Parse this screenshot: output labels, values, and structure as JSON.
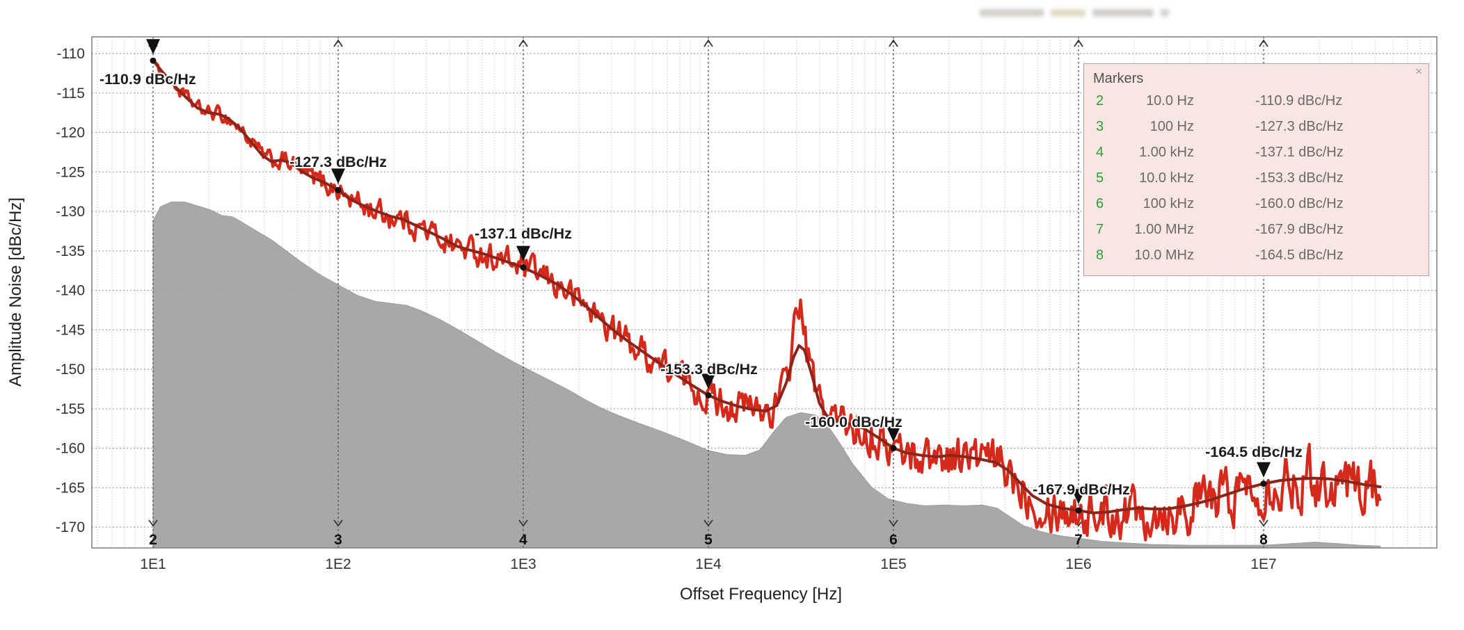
{
  "chart_data": {
    "type": "line",
    "title": "",
    "xlabel": "Offset Frequency [Hz]",
    "ylabel": "Amplitude Noise [dBc/Hz]",
    "x_scale": "log",
    "xlim_log10": [
      0.669,
      7.93
    ],
    "ylim": [
      -172.6,
      -107.9
    ],
    "grid": true,
    "x_tick_labels": [
      "1E1",
      "1E2",
      "1E3",
      "1E4",
      "1E5",
      "1E6",
      "1E7"
    ],
    "x_tick_log10": [
      1,
      2,
      3,
      4,
      5,
      6,
      7
    ],
    "y_tick_labels": [
      "-110",
      "-115",
      "-120",
      "-125",
      "-130",
      "-135",
      "-140",
      "-145",
      "-150",
      "-155",
      "-160",
      "-165",
      "-170"
    ],
    "y_ticks": [
      -110,
      -115,
      -120,
      -125,
      -130,
      -135,
      -140,
      -145,
      -150,
      -155,
      -160,
      -165,
      -170
    ],
    "colors": {
      "raw_trace": "#d4291b",
      "smoothed_trace": "#8c241a",
      "noise_floor_area": "#a8a8a8",
      "marker_decoration": "#111111",
      "grid_minor": "#c6c6c6",
      "grid_major": "#9f9f9f",
      "marker_line": "#4f4f4f",
      "axis_border": "#7d7d7d"
    },
    "series": [
      {
        "name": "raw-measured-trace",
        "style": "noisy-line",
        "color": "#d4291b",
        "derived": "smoothed-average plus band noise",
        "noise_halfwidth_db_log10f": [
          [
            1.0,
            0.5
          ],
          [
            1.5,
            0.7
          ],
          [
            2.0,
            1.0
          ],
          [
            2.5,
            1.1
          ],
          [
            3.0,
            1.2
          ],
          [
            3.5,
            1.3
          ],
          [
            4.0,
            1.5
          ],
          [
            4.5,
            1.6
          ],
          [
            5.0,
            1.8
          ],
          [
            5.5,
            1.9
          ],
          [
            6.0,
            2.1
          ],
          [
            6.5,
            2.3
          ],
          [
            7.0,
            2.4
          ],
          [
            7.63,
            2.4
          ]
        ],
        "spur": {
          "log10_f": 4.485,
          "extra_db": 5.6,
          "sigma_log10": 0.034
        }
      },
      {
        "name": "smoothed-average-trace",
        "style": "line",
        "color": "#8c241a",
        "points_log10f_db": [
          [
            1.0,
            -110.9
          ],
          [
            1.06,
            -112.6
          ],
          [
            1.12,
            -114.2
          ],
          [
            1.18,
            -115.6
          ],
          [
            1.24,
            -116.9
          ],
          [
            1.3,
            -117.5
          ],
          [
            1.36,
            -117.7
          ],
          [
            1.41,
            -118.3
          ],
          [
            1.47,
            -119.5
          ],
          [
            1.53,
            -121.2
          ],
          [
            1.59,
            -122.9
          ],
          [
            1.64,
            -123.7
          ],
          [
            1.69,
            -123.5
          ],
          [
            1.74,
            -123.8
          ],
          [
            1.8,
            -124.9
          ],
          [
            1.86,
            -125.7
          ],
          [
            1.93,
            -126.4
          ],
          [
            2.0,
            -127.3
          ],
          [
            2.06,
            -128.4
          ],
          [
            2.12,
            -129.1
          ],
          [
            2.2,
            -129.9
          ],
          [
            2.28,
            -130.6
          ],
          [
            2.35,
            -131.0
          ],
          [
            2.43,
            -131.9
          ],
          [
            2.5,
            -132.7
          ],
          [
            2.57,
            -133.5
          ],
          [
            2.64,
            -134.4
          ],
          [
            2.71,
            -134.9
          ],
          [
            2.79,
            -135.4
          ],
          [
            2.89,
            -136.2
          ],
          [
            3.0,
            -137.1
          ],
          [
            3.09,
            -138.1
          ],
          [
            3.18,
            -139.2
          ],
          [
            3.26,
            -140.5
          ],
          [
            3.34,
            -142.0
          ],
          [
            3.42,
            -143.7
          ],
          [
            3.5,
            -145.3
          ],
          [
            3.58,
            -146.7
          ],
          [
            3.66,
            -148.0
          ],
          [
            3.74,
            -149.3
          ],
          [
            3.82,
            -150.6
          ],
          [
            3.91,
            -152.0
          ],
          [
            4.0,
            -153.3
          ],
          [
            4.08,
            -154.1
          ],
          [
            4.16,
            -154.7
          ],
          [
            4.24,
            -155.1
          ],
          [
            4.31,
            -155.3
          ],
          [
            4.37,
            -154.6
          ],
          [
            4.42,
            -151.8
          ],
          [
            4.46,
            -148.5
          ],
          [
            4.49,
            -147.0
          ],
          [
            4.52,
            -147.6
          ],
          [
            4.56,
            -150.8
          ],
          [
            4.6,
            -154.3
          ],
          [
            4.64,
            -155.9
          ],
          [
            4.7,
            -156.5
          ],
          [
            4.77,
            -157.0
          ],
          [
            4.84,
            -157.5
          ],
          [
            4.92,
            -158.7
          ],
          [
            5.0,
            -160.0
          ],
          [
            5.07,
            -160.6
          ],
          [
            5.15,
            -160.9
          ],
          [
            5.23,
            -161.1
          ],
          [
            5.31,
            -160.9
          ],
          [
            5.39,
            -161.1
          ],
          [
            5.47,
            -161.4
          ],
          [
            5.55,
            -161.8
          ],
          [
            5.62,
            -162.8
          ],
          [
            5.68,
            -164.3
          ],
          [
            5.75,
            -166.0
          ],
          [
            5.83,
            -167.1
          ],
          [
            5.91,
            -167.6
          ],
          [
            6.0,
            -167.9
          ],
          [
            6.08,
            -168.2
          ],
          [
            6.16,
            -168.1
          ],
          [
            6.24,
            -167.8
          ],
          [
            6.32,
            -167.6
          ],
          [
            6.4,
            -167.7
          ],
          [
            6.48,
            -167.7
          ],
          [
            6.56,
            -167.4
          ],
          [
            6.64,
            -167.0
          ],
          [
            6.72,
            -166.5
          ],
          [
            6.81,
            -165.8
          ],
          [
            6.9,
            -165.1
          ],
          [
            7.0,
            -164.5
          ],
          [
            7.09,
            -164.1
          ],
          [
            7.18,
            -163.9
          ],
          [
            7.27,
            -163.8
          ],
          [
            7.36,
            -163.9
          ],
          [
            7.45,
            -164.2
          ],
          [
            7.54,
            -164.6
          ],
          [
            7.63,
            -164.9
          ]
        ]
      },
      {
        "name": "gray-noise-floor-area",
        "style": "area",
        "color": "#a8a8a8",
        "points_log10f_db": [
          [
            1.0,
            -131.2
          ],
          [
            1.04,
            -129.4
          ],
          [
            1.1,
            -128.8
          ],
          [
            1.17,
            -128.8
          ],
          [
            1.24,
            -129.3
          ],
          [
            1.31,
            -129.8
          ],
          [
            1.37,
            -130.5
          ],
          [
            1.43,
            -130.7
          ],
          [
            1.49,
            -131.5
          ],
          [
            1.56,
            -132.5
          ],
          [
            1.64,
            -133.6
          ],
          [
            1.72,
            -135.0
          ],
          [
            1.8,
            -136.4
          ],
          [
            1.9,
            -138.0
          ],
          [
            2.0,
            -139.3
          ],
          [
            2.1,
            -140.6
          ],
          [
            2.2,
            -141.4
          ],
          [
            2.3,
            -141.7
          ],
          [
            2.37,
            -141.9
          ],
          [
            2.45,
            -142.6
          ],
          [
            2.55,
            -143.7
          ],
          [
            2.65,
            -145.0
          ],
          [
            2.75,
            -146.4
          ],
          [
            2.85,
            -147.8
          ],
          [
            2.95,
            -149.1
          ],
          [
            3.05,
            -150.3
          ],
          [
            3.15,
            -151.5
          ],
          [
            3.25,
            -152.7
          ],
          [
            3.33,
            -153.8
          ],
          [
            3.42,
            -154.9
          ],
          [
            3.52,
            -155.9
          ],
          [
            3.62,
            -156.8
          ],
          [
            3.75,
            -157.9
          ],
          [
            3.88,
            -159.1
          ],
          [
            4.0,
            -160.3
          ],
          [
            4.1,
            -160.8
          ],
          [
            4.2,
            -160.9
          ],
          [
            4.28,
            -160.2
          ],
          [
            4.35,
            -158.0
          ],
          [
            4.42,
            -156.1
          ],
          [
            4.5,
            -155.5
          ],
          [
            4.58,
            -155.8
          ],
          [
            4.64,
            -157.0
          ],
          [
            4.7,
            -159.0
          ],
          [
            4.78,
            -162.0
          ],
          [
            4.88,
            -164.9
          ],
          [
            4.97,
            -166.4
          ],
          [
            5.07,
            -167.0
          ],
          [
            5.17,
            -167.3
          ],
          [
            5.28,
            -167.2
          ],
          [
            5.38,
            -167.3
          ],
          [
            5.48,
            -167.2
          ],
          [
            5.56,
            -167.6
          ],
          [
            5.63,
            -168.7
          ],
          [
            5.7,
            -169.8
          ],
          [
            5.8,
            -170.6
          ],
          [
            5.9,
            -171.1
          ],
          [
            6.0,
            -171.4
          ],
          [
            6.12,
            -171.8
          ],
          [
            6.25,
            -172.0
          ],
          [
            6.4,
            -172.2
          ],
          [
            6.6,
            -172.3
          ],
          [
            6.8,
            -172.3
          ],
          [
            7.0,
            -172.3
          ],
          [
            7.15,
            -172.1
          ],
          [
            7.28,
            -171.9
          ],
          [
            7.4,
            -172.1
          ],
          [
            7.52,
            -172.3
          ],
          [
            7.63,
            -172.4
          ]
        ]
      }
    ],
    "markers": [
      {
        "id": "2",
        "log10_f": 1,
        "freq": "10.0 Hz",
        "value_db": -110.9,
        "callout": "-110.9 dBc/Hz"
      },
      {
        "id": "3",
        "log10_f": 2,
        "freq": "100 Hz",
        "value_db": -127.3,
        "callout": "-127.3 dBc/Hz"
      },
      {
        "id": "4",
        "log10_f": 3,
        "freq": "1.00 kHz",
        "value_db": -137.1,
        "callout": "-137.1 dBc/Hz"
      },
      {
        "id": "5",
        "log10_f": 4,
        "freq": "10.0 kHz",
        "value_db": -153.3,
        "callout": "-153.3 dBc/Hz"
      },
      {
        "id": "6",
        "log10_f": 5,
        "freq": "100 kHz",
        "value_db": -160.0,
        "callout": "-160.0 dBc/Hz"
      },
      {
        "id": "7",
        "log10_f": 6,
        "freq": "1.00 MHz",
        "value_db": -167.9,
        "callout": "-167.9 dBc/Hz"
      },
      {
        "id": "8",
        "log10_f": 7,
        "freq": "10.0 MHz",
        "value_db": -164.5,
        "callout": "-164.5 dBc/Hz"
      }
    ]
  },
  "markers_panel": {
    "title": "Markers",
    "close_label": "×",
    "background": "#f8e6e3",
    "number_color": "#2f9e35",
    "text_color": "#6e6868",
    "rows": [
      {
        "id": "2",
        "freq": "10.0 Hz",
        "value": "-110.9 dBc/Hz"
      },
      {
        "id": "3",
        "freq": "100 Hz",
        "value": "-127.3 dBc/Hz"
      },
      {
        "id": "4",
        "freq": "1.00 kHz",
        "value": "-137.1 dBc/Hz"
      },
      {
        "id": "5",
        "freq": "10.0 kHz",
        "value": "-153.3 dBc/Hz"
      },
      {
        "id": "6",
        "freq": "100 kHz",
        "value": "-160.0 dBc/Hz"
      },
      {
        "id": "7",
        "freq": "1.00 MHz",
        "value": "-167.9 dBc/Hz"
      },
      {
        "id": "8",
        "freq": "10.0 MHz",
        "value": "-164.5 dBc/Hz"
      }
    ]
  }
}
